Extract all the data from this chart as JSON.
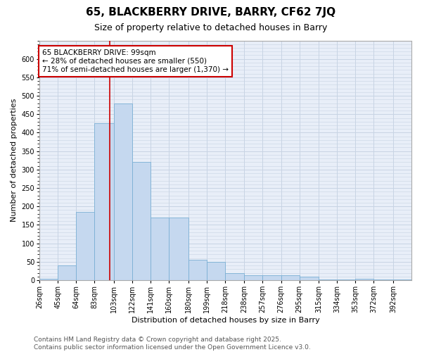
{
  "title_line1": "65, BLACKBERRY DRIVE, BARRY, CF62 7JQ",
  "title_line2": "Size of property relative to detached houses in Barry",
  "xlabel": "Distribution of detached houses by size in Barry",
  "ylabel": "Number of detached properties",
  "bar_edges": [
    26,
    45,
    64,
    83,
    103,
    122,
    141,
    160,
    180,
    199,
    218,
    238,
    257,
    276,
    295,
    315,
    334,
    353,
    372,
    392,
    411
  ],
  "bar_heights": [
    3,
    40,
    185,
    425,
    480,
    320,
    170,
    170,
    55,
    50,
    20,
    13,
    14,
    14,
    10,
    2,
    1,
    4,
    1,
    2
  ],
  "bar_color": "#c5d8ef",
  "bar_edge_color": "#7aafd4",
  "grid_color": "#c8d4e4",
  "bg_color": "#e8eef8",
  "property_line_x": 99,
  "annotation_text": "65 BLACKBERRY DRIVE: 99sqm\n← 28% of detached houses are smaller (550)\n71% of semi-detached houses are larger (1,370) →",
  "annotation_box_color": "#ffffff",
  "annotation_border_color": "#cc0000",
  "vline_color": "#cc0000",
  "ylim": [
    0,
    650
  ],
  "yticks": [
    0,
    50,
    100,
    150,
    200,
    250,
    300,
    350,
    400,
    450,
    500,
    550,
    600
  ],
  "footer_text": "Contains HM Land Registry data © Crown copyright and database right 2025.\nContains public sector information licensed under the Open Government Licence v3.0.",
  "title_fontsize": 11,
  "subtitle_fontsize": 9,
  "axis_label_fontsize": 8,
  "tick_fontsize": 7,
  "annotation_fontsize": 7.5,
  "footer_fontsize": 6.5
}
